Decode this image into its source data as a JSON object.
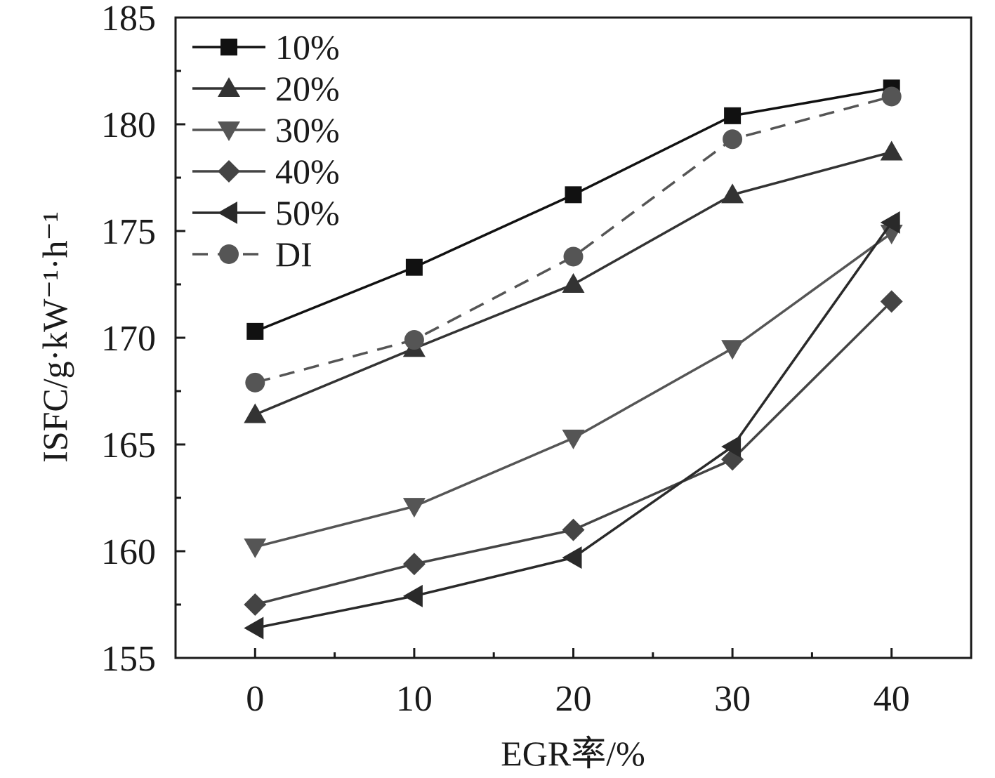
{
  "chart_data": {
    "type": "line",
    "xlabel": "EGR率/%",
    "ylabel": "ISFC/g·kW⁻¹·h⁻¹",
    "xlim": [
      -5,
      45
    ],
    "ylim": [
      155,
      185
    ],
    "x_ticks": [
      "0",
      "10",
      "20",
      "30",
      "40"
    ],
    "y_ticks": [
      "155",
      "160",
      "165",
      "170",
      "175",
      "180",
      "185"
    ],
    "x": [
      0,
      10,
      20,
      30,
      40
    ],
    "legend_position": "top-left",
    "series": [
      {
        "name": "10%",
        "marker": "square",
        "dashed": false,
        "color": "#111111",
        "values": [
          170.3,
          173.3,
          176.7,
          180.4,
          181.7
        ]
      },
      {
        "name": "20%",
        "marker": "triangle-up",
        "dashed": false,
        "color": "#333333",
        "values": [
          166.4,
          169.5,
          172.5,
          176.7,
          178.7
        ]
      },
      {
        "name": "30%",
        "marker": "triangle-down",
        "dashed": false,
        "color": "#555555",
        "values": [
          160.2,
          162.1,
          165.3,
          169.5,
          174.9
        ]
      },
      {
        "name": "40%",
        "marker": "diamond",
        "dashed": false,
        "color": "#444444",
        "values": [
          157.5,
          159.4,
          161.0,
          164.3,
          171.7
        ]
      },
      {
        "name": "50%",
        "marker": "triangle-left",
        "dashed": false,
        "color": "#2a2a2a",
        "values": [
          156.4,
          157.9,
          159.7,
          164.9,
          175.4
        ]
      },
      {
        "name": "DI",
        "marker": "circle",
        "dashed": true,
        "color": "#555555",
        "values": [
          167.9,
          169.9,
          173.8,
          179.3,
          181.3
        ]
      }
    ]
  }
}
